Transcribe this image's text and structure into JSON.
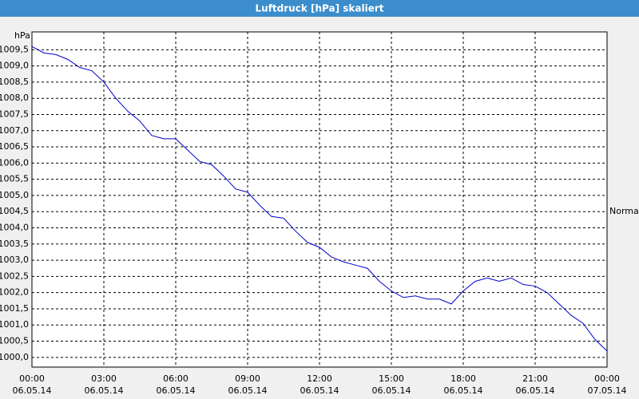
{
  "chart_data": {
    "type": "line",
    "title": "Luftdruck [hPa] skaliert",
    "ylabel": "hPa",
    "annotation": "Normal",
    "x": [
      0,
      0.5,
      1,
      1.5,
      2,
      2.5,
      3,
      3.5,
      4,
      4.5,
      5,
      5.5,
      6,
      6.5,
      7,
      7.5,
      8,
      8.5,
      9,
      9.5,
      10,
      10.5,
      11,
      11.5,
      12,
      12.5,
      13,
      13.5,
      14,
      14.5,
      15,
      15.5,
      16,
      16.5,
      17,
      17.5,
      18,
      18.5,
      19,
      19.5,
      20,
      20.5,
      21,
      21.5,
      22,
      22.5,
      23,
      23.5,
      24
    ],
    "series": [
      {
        "name": "Luftdruck",
        "color": "#0000c8",
        "values": [
          1009.6,
          1009.4,
          1009.35,
          1009.2,
          1008.95,
          1008.85,
          1008.5,
          1008.0,
          1007.6,
          1007.3,
          1006.85,
          1006.75,
          1006.75,
          1006.4,
          1006.05,
          1005.95,
          1005.6,
          1005.2,
          1005.1,
          1004.7,
          1004.35,
          1004.3,
          1003.9,
          1003.55,
          1003.4,
          1003.1,
          1002.95,
          1002.85,
          1002.75,
          1002.35,
          1002.05,
          1001.85,
          1001.9,
          1001.8,
          1001.8,
          1001.65,
          1002.05,
          1002.35,
          1002.45,
          1002.35,
          1002.45,
          1002.25,
          1002.2,
          1002.0,
          1001.65,
          1001.3,
          1001.05,
          1000.55,
          1000.2
        ]
      }
    ],
    "xlim": [
      0,
      24
    ],
    "xticks": [
      {
        "value": 0,
        "label": "00:00"
      },
      {
        "value": 3,
        "label": "03:00"
      },
      {
        "value": 6,
        "label": "06:00"
      },
      {
        "value": 9,
        "label": "09:00"
      },
      {
        "value": 12,
        "label": "12:00"
      },
      {
        "value": 15,
        "label": "15:00"
      },
      {
        "value": 18,
        "label": "18:00"
      },
      {
        "value": 21,
        "label": "21:00"
      },
      {
        "value": 24,
        "label": "00:00"
      }
    ],
    "xtick_dates": [
      "06.05.14",
      "06.05.14",
      "06.05.14",
      "06.05.14",
      "06.05.14",
      "06.05.14",
      "06.05.14",
      "06.05.14",
      "07.05.14"
    ],
    "ylim": [
      999.7,
      1010.05
    ],
    "yticks": [
      {
        "value": 1000,
        "label": "1000,0"
      },
      {
        "value": 1000.5,
        "label": "1000,5"
      },
      {
        "value": 1001,
        "label": "1001,0"
      },
      {
        "value": 1001.5,
        "label": "1001,5"
      },
      {
        "value": 1002,
        "label": "1002,0"
      },
      {
        "value": 1002.5,
        "label": "1002,5"
      },
      {
        "value": 1003,
        "label": "1003,0"
      },
      {
        "value": 1003.5,
        "label": "1003,5"
      },
      {
        "value": 1004,
        "label": "1004,0"
      },
      {
        "value": 1004.5,
        "label": "1004,5"
      },
      {
        "value": 1005,
        "label": "1005,0"
      },
      {
        "value": 1005.5,
        "label": "1005,5"
      },
      {
        "value": 1006,
        "label": "1006,0"
      },
      {
        "value": 1006.5,
        "label": "1006,5"
      },
      {
        "value": 1007,
        "label": "1007,0"
      },
      {
        "value": 1007.5,
        "label": "1007,5"
      },
      {
        "value": 1008,
        "label": "1008,0"
      },
      {
        "value": 1008.5,
        "label": "1008,5"
      },
      {
        "value": 1009,
        "label": "1009,0"
      },
      {
        "value": 1009.5,
        "label": "1009,5"
      }
    ],
    "grid": true
  }
}
